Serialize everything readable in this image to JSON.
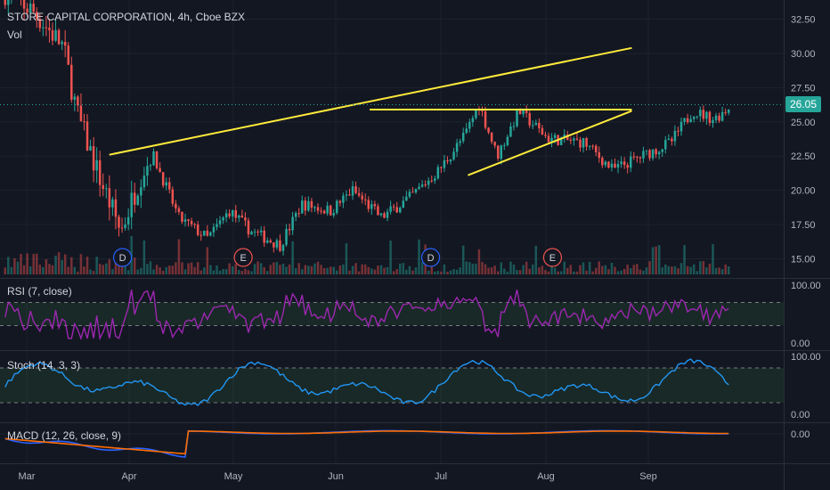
{
  "header": {
    "title": "STORE CAPITAL CORPORATION, 4h, Cboe BZX",
    "volume_label": "Vol"
  },
  "current_price": "26.05",
  "colors": {
    "background": "#131722",
    "up": "#26a69a",
    "down": "#ef5350",
    "trendline": "#ffeb3b",
    "rsi": "#9c27b0",
    "stoch": "#2196f3",
    "macd": "#2962ff",
    "signal": "#ff6d00"
  },
  "panes": {
    "rsi_label": "RSI (7, close)",
    "stoch_label": "Stoch (14, 3, 3)",
    "macd_label": "MACD (12, 26, close, 9)"
  },
  "chart_data": {
    "type": "candlestick",
    "x_labels": [
      "Mar",
      "Apr",
      "May",
      "Jun",
      "Jul",
      "Aug",
      "Sep"
    ],
    "price_axis": {
      "ticks": [
        "32.50",
        "30.00",
        "27.50",
        "25.00",
        "22.50",
        "20.00",
        "17.50",
        "15.00"
      ],
      "ylim": [
        13.6,
        33.9
      ]
    },
    "close_path": [
      {
        "t": 0.0,
        "p": 34.5
      },
      {
        "t": 0.04,
        "p": 33.0
      },
      {
        "t": 0.08,
        "p": 30.5
      },
      {
        "t": 0.1,
        "p": 25.5
      },
      {
        "t": 0.13,
        "p": 21.0
      },
      {
        "t": 0.16,
        "p": 17.0
      },
      {
        "t": 0.19,
        "p": 21.5
      },
      {
        "t": 0.205,
        "p": 22.5
      },
      {
        "t": 0.24,
        "p": 18.0
      },
      {
        "t": 0.28,
        "p": 16.5
      },
      {
        "t": 0.31,
        "p": 18.5
      },
      {
        "t": 0.34,
        "p": 17.0
      },
      {
        "t": 0.38,
        "p": 16.0
      },
      {
        "t": 0.41,
        "p": 19.0
      },
      {
        "t": 0.45,
        "p": 18.5
      },
      {
        "t": 0.48,
        "p": 20.0
      },
      {
        "t": 0.52,
        "p": 18.0
      },
      {
        "t": 0.56,
        "p": 19.5
      },
      {
        "t": 0.6,
        "p": 21.5
      },
      {
        "t": 0.635,
        "p": 24.0
      },
      {
        "t": 0.655,
        "p": 26.3
      },
      {
        "t": 0.68,
        "p": 22.5
      },
      {
        "t": 0.71,
        "p": 25.8
      },
      {
        "t": 0.75,
        "p": 23.8
      },
      {
        "t": 0.8,
        "p": 23.5
      },
      {
        "t": 0.84,
        "p": 21.5
      },
      {
        "t": 0.88,
        "p": 22.5
      },
      {
        "t": 0.92,
        "p": 23.5
      },
      {
        "t": 0.95,
        "p": 25.8
      },
      {
        "t": 0.98,
        "p": 25.2
      },
      {
        "t": 1.0,
        "p": 26.05
      }
    ],
    "trendlines": [
      {
        "from": [
          "Mar 26",
          22.6
        ],
        "to": [
          "Aug 27",
          30.4
        ]
      },
      {
        "from": [
          "Jun 11",
          25.9
        ],
        "to": [
          "Aug 27",
          25.9
        ]
      },
      {
        "from": [
          "Jul 9",
          21.1
        ],
        "to": [
          "Aug 27",
          25.8
        ]
      }
    ],
    "events": [
      {
        "label": "D",
        "date": "Mar 30",
        "kind": "dividend"
      },
      {
        "label": "E",
        "date": "May 4",
        "kind": "earnings"
      },
      {
        "label": "D",
        "date": "Jun 29",
        "kind": "dividend"
      },
      {
        "label": "E",
        "date": "Aug 3",
        "kind": "earnings"
      }
    ],
    "rsi": {
      "ticks": [
        "100.00",
        "0.00"
      ],
      "ylim": [
        0,
        100
      ],
      "band": [
        30,
        70
      ]
    },
    "stoch": {
      "ticks": [
        "100.00",
        "0.00"
      ],
      "ylim": [
        0,
        100
      ],
      "band": [
        20,
        80
      ]
    },
    "macd": {
      "ticks": [
        "0.00"
      ]
    }
  }
}
